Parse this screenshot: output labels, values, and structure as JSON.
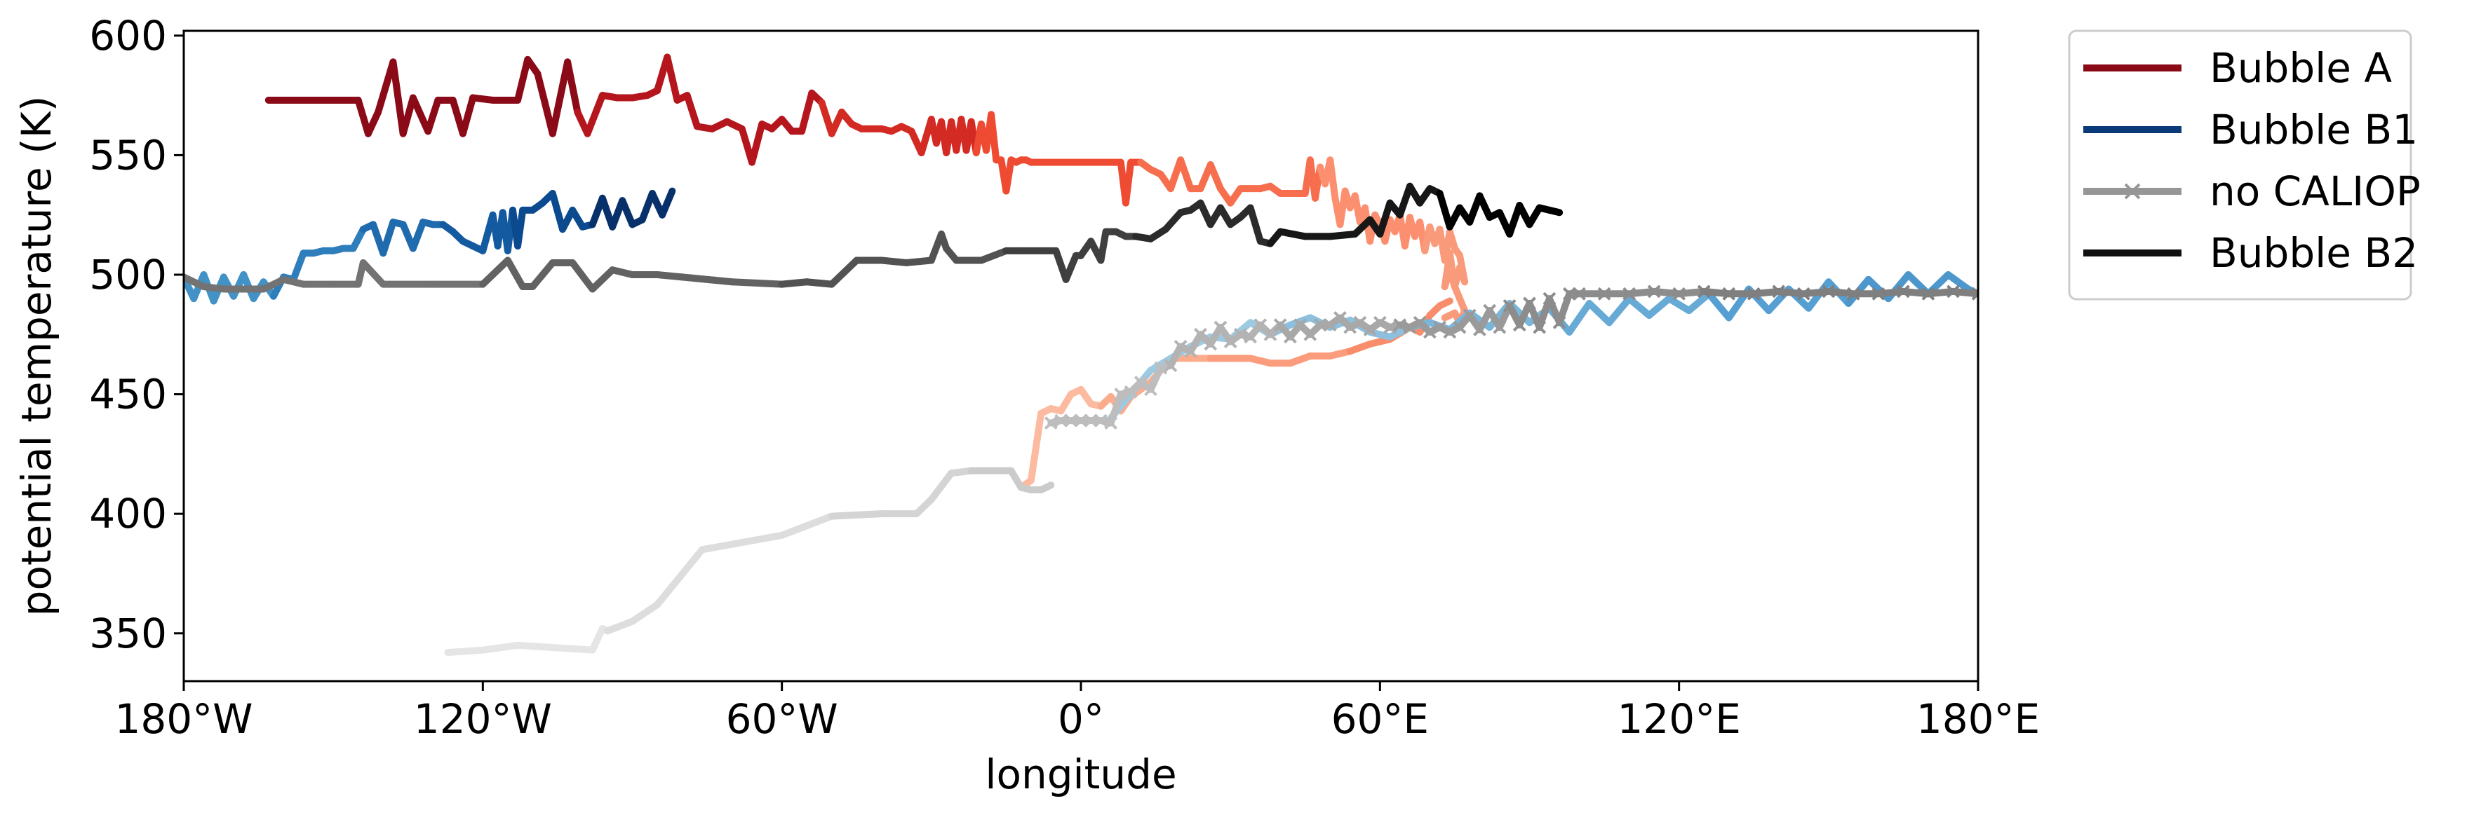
{
  "chart_data": {
    "type": "line",
    "xlabel": "longitude",
    "ylabel": "potential temperature (K)",
    "xlim": [
      -180,
      180
    ],
    "ylim": [
      330,
      602
    ],
    "grid": false,
    "legend_placement": "outside-top-right",
    "xticks": [
      {
        "value": -180,
        "label": "180°W"
      },
      {
        "value": -120,
        "label": "120°W"
      },
      {
        "value": -60,
        "label": "60°W"
      },
      {
        "value": 0,
        "label": "0°"
      },
      {
        "value": 60,
        "label": "60°E"
      },
      {
        "value": 120,
        "label": "120°E"
      },
      {
        "value": 180,
        "label": "180°E"
      }
    ],
    "yticks": [
      {
        "value": 350,
        "label": "350"
      },
      {
        "value": 400,
        "label": "400"
      },
      {
        "value": 450,
        "label": "450"
      },
      {
        "value": 500,
        "label": "500"
      },
      {
        "value": 550,
        "label": "550"
      },
      {
        "value": 600,
        "label": "600"
      }
    ],
    "legend": [
      {
        "label": "Bubble A",
        "color": "#8b0a17",
        "marker": "none"
      },
      {
        "label": "Bubble B1",
        "color": "#0b3a78",
        "marker": "none"
      },
      {
        "label": "no CALIOP",
        "color": "#969696",
        "marker": "x"
      },
      {
        "label": "Bubble B2",
        "color": "#111111",
        "marker": "none"
      }
    ],
    "series": [
      {
        "group": "Bubble A",
        "marker": "none",
        "colors": [
          "#8b0a17",
          "#b5161d",
          "#d32a24",
          "#ee4b32",
          "#f66e4e",
          "#fb8f6f",
          "#f99a7a"
        ],
        "x": [
          -163,
          -160,
          -150,
          -145,
          -143,
          -141,
          -138,
          -136,
          -134,
          -131,
          -129,
          -126,
          -124,
          -122,
          -118,
          -116,
          -113,
          -111,
          -109,
          -106,
          -103,
          -101,
          -99,
          -96,
          -93,
          -90,
          -87,
          -85,
          -83,
          -81,
          -79,
          -77,
          -74,
          -71,
          -68,
          -66,
          -64,
          -62,
          -60,
          -58,
          -56,
          -54,
          -52,
          -50,
          -48,
          -46,
          -44,
          -42,
          -40,
          -38,
          -36,
          -34,
          -32,
          -30,
          -29,
          -28,
          -27,
          -26,
          -25,
          -24,
          -23,
          -22,
          -21,
          -20,
          -19,
          -18,
          -17,
          -16,
          -15,
          -14,
          -13,
          -12,
          -11,
          -10,
          -8,
          -5,
          -2,
          0,
          2,
          5,
          8,
          9,
          10,
          12,
          14,
          16,
          18,
          20,
          22,
          24,
          26,
          28,
          30,
          32,
          34,
          36,
          38,
          40,
          42,
          44,
          45,
          46,
          47,
          48,
          49,
          50,
          51,
          52,
          53,
          54,
          55,
          56,
          57,
          58,
          59,
          60,
          61,
          62,
          63,
          64,
          65,
          66,
          67,
          68,
          69,
          70,
          71,
          72,
          73,
          74,
          75,
          76,
          77,
          76,
          75,
          74,
          73,
          74,
          75,
          76,
          77,
          76,
          75,
          74,
          73
        ],
        "y": [
          573,
          573,
          573,
          573,
          559,
          568,
          589,
          559,
          574,
          560,
          573,
          573,
          559,
          574,
          573,
          573,
          573,
          590,
          584,
          559,
          589,
          568,
          559,
          575,
          574,
          574,
          575,
          577,
          591,
          573,
          575,
          562,
          561,
          564,
          561,
          547,
          563,
          561,
          565,
          560,
          560,
          576,
          572,
          559,
          568,
          563,
          561,
          561,
          561,
          560,
          562,
          560,
          551,
          565,
          555,
          564,
          551,
          564,
          552,
          565,
          552,
          564,
          551,
          563,
          552,
          567,
          548,
          548,
          535,
          548,
          547,
          548,
          548,
          547,
          547,
          547,
          547,
          547,
          547,
          547,
          547,
          530,
          547,
          547,
          544,
          542,
          536,
          548,
          536,
          536,
          546,
          536,
          530,
          536,
          536,
          536,
          537,
          534,
          534,
          534,
          534,
          548,
          532,
          545,
          538,
          548,
          532,
          521,
          535,
          528,
          533,
          522,
          528,
          514,
          525,
          521,
          514,
          523,
          518,
          525,
          512,
          524,
          516,
          522,
          510,
          520,
          513,
          519,
          506,
          518,
          511,
          508,
          497,
          503,
          495,
          509,
          495,
          502,
          495,
          490,
          485,
          480,
          484,
          483,
          482
        ]
      },
      {
        "group": "Bubble A",
        "marker": "none",
        "colors": [
          "#fcbba1",
          "#fbac8d",
          "#fb9c7c",
          "#f98c6a"
        ],
        "x": [
          -12,
          -10,
          -8,
          -6,
          -4,
          -2,
          0,
          2,
          4,
          6,
          8,
          10,
          14,
          18,
          22,
          26,
          30,
          34,
          38,
          42,
          46,
          50,
          54,
          58,
          62,
          66,
          68,
          70,
          72,
          74
        ],
        "y": [
          411,
          414,
          442,
          444,
          443,
          450,
          452,
          446,
          445,
          449,
          443,
          449,
          455,
          465,
          465,
          465,
          465,
          465,
          463,
          463,
          466,
          466,
          468,
          471,
          473,
          478,
          476,
          483,
          487,
          489
        ]
      },
      {
        "group": "Bubble B1",
        "marker": "none",
        "colors": [
          "#4292c6",
          "#2f7ebc",
          "#1f6bae",
          "#145aa0",
          "#0b4a8f",
          "#08306b"
        ],
        "x": [
          -180,
          -178,
          -176,
          -174,
          -172,
          -170,
          -168,
          -166,
          -164,
          -162,
          -160,
          -158,
          -156,
          -154,
          -152,
          -150,
          -148,
          -146,
          -144,
          -142,
          -140,
          -138,
          -136,
          -134,
          -132,
          -130,
          -128,
          -126,
          -124,
          -122,
          -120,
          -118,
          -117,
          -116,
          -115,
          -114,
          -113,
          -112,
          -110,
          -108,
          -106,
          -104,
          -102,
          -100,
          -98,
          -96,
          -94,
          -92,
          -90,
          -88,
          -86,
          -84,
          -82
        ],
        "y": [
          499,
          490,
          500,
          489,
          499,
          491,
          500,
          490,
          497,
          491,
          499,
          498,
          509,
          509,
          510,
          510,
          511,
          511,
          519,
          521,
          509,
          522,
          521,
          511,
          522,
          521,
          521,
          518,
          514,
          512,
          510,
          525,
          512,
          526,
          510,
          527,
          512,
          527,
          527,
          530,
          534,
          519,
          527,
          520,
          521,
          532,
          520,
          531,
          521,
          523,
          534,
          525,
          535
        ]
      },
      {
        "group": "Bubble B1",
        "marker": "none",
        "colors": [
          "#9ecae1",
          "#8cc0de",
          "#7ab5da",
          "#68aad6",
          "#569fd2",
          "#4d97cc"
        ],
        "x": [
          6,
          10,
          14,
          18,
          22,
          26,
          30,
          34,
          38,
          42,
          46,
          50,
          54,
          58,
          62,
          66,
          70,
          74,
          78,
          82,
          86,
          90,
          94,
          98,
          102,
          106,
          110,
          114,
          118,
          122,
          126,
          130,
          134,
          138,
          142,
          146,
          150,
          154,
          158,
          162,
          166,
          170,
          174,
          178,
          180
        ],
        "y": [
          440,
          450,
          460,
          465,
          470,
          474,
          473,
          480,
          475,
          479,
          482,
          478,
          481,
          476,
          474,
          478,
          480,
          477,
          484,
          478,
          488,
          480,
          486,
          476,
          488,
          480,
          490,
          483,
          490,
          485,
          492,
          482,
          494,
          485,
          494,
          486,
          497,
          488,
          498,
          490,
          500,
          492,
          500,
          494,
          492
        ]
      },
      {
        "group": "Bubble B2",
        "marker": "none",
        "colors": [
          "#737373",
          "#626262",
          "#525252",
          "#3f3f3f",
          "#2b2b2b",
          "#171717",
          "#000000"
        ],
        "x": [
          -180,
          -176,
          -172,
          -168,
          -164,
          -160,
          -156,
          -150,
          -145,
          -144,
          -140,
          -130,
          -120,
          -115,
          -112,
          -110,
          -106,
          -102,
          -98,
          -94,
          -90,
          -85,
          -80,
          -70,
          -60,
          -55,
          -50,
          -45,
          -42,
          -40,
          -35,
          -30,
          -28,
          -27,
          -25,
          -20,
          -15,
          -12,
          -8,
          -5,
          -3,
          -1,
          0,
          2,
          4,
          5,
          7,
          9,
          11,
          14,
          17,
          20,
          22,
          24,
          26,
          28,
          30,
          32,
          34,
          36,
          38,
          40,
          45,
          50,
          55,
          58,
          60,
          62,
          64,
          66,
          68,
          70,
          72,
          74,
          76,
          78,
          80,
          82,
          84,
          86,
          88,
          90,
          92,
          94,
          96
        ],
        "y": [
          499,
          495,
          494,
          494,
          494,
          498,
          496,
          496,
          496,
          505,
          496,
          496,
          496,
          506,
          495,
          495,
          505,
          505,
          494,
          502,
          500,
          500,
          499,
          497,
          496,
          497,
          496,
          506,
          506,
          506,
          505,
          506,
          517,
          511,
          506,
          506,
          510,
          510,
          510,
          510,
          498,
          508,
          508,
          514,
          506,
          518,
          518,
          516,
          516,
          515,
          519,
          526,
          527,
          530,
          521,
          528,
          521,
          524,
          528,
          514,
          513,
          518,
          516,
          516,
          517,
          523,
          517,
          530,
          525,
          537,
          530,
          536,
          534,
          520,
          528,
          522,
          533,
          524,
          526,
          517,
          529,
          521,
          528,
          527,
          526
        ]
      },
      {
        "group": "no CALIOP",
        "marker": "x",
        "colors": [
          "#bdbdbd",
          "#b3b3b3",
          "#a8a8a8",
          "#9a9a9a",
          "#8c8c8c",
          "#7f7f7f"
        ],
        "x": [
          -6,
          -4,
          -2,
          0,
          2,
          4,
          6,
          8,
          10,
          12,
          14,
          16,
          18,
          20,
          22,
          24,
          26,
          28,
          30,
          32,
          34,
          36,
          38,
          40,
          42,
          44,
          46,
          48,
          50,
          52,
          54,
          56,
          58,
          60,
          62,
          64,
          66,
          68,
          70,
          72,
          74,
          76,
          78,
          80,
          82,
          84,
          86,
          88,
          90,
          92,
          94,
          96,
          98,
          100,
          105,
          110,
          115,
          120,
          125,
          130,
          135,
          140,
          145,
          150,
          155,
          160,
          165,
          170,
          175,
          180
        ],
        "y": [
          438,
          439,
          439,
          439,
          439,
          439,
          438,
          450,
          451,
          455,
          452,
          461,
          462,
          470,
          468,
          475,
          471,
          478,
          472,
          475,
          474,
          479,
          475,
          479,
          474,
          479,
          475,
          479,
          479,
          482,
          478,
          480,
          477,
          480,
          478,
          479,
          478,
          480,
          476,
          478,
          476,
          478,
          483,
          477,
          485,
          478,
          487,
          479,
          488,
          478,
          490,
          480,
          492,
          492,
          492,
          492,
          493,
          492,
          493,
          492,
          492,
          493,
          492,
          493,
          492,
          492,
          493,
          492,
          493,
          492
        ]
      },
      {
        "group": "no CALIOP",
        "marker": "none",
        "colors": [
          "#e5e5e5",
          "#dddddd",
          "#d4d4d4",
          "#cbcbcb"
        ],
        "x": [
          -127,
          -120,
          -113,
          -98,
          -96,
          -95,
          -90,
          -85,
          -76,
          -60,
          -50,
          -40,
          -33,
          -30,
          -26,
          -22,
          -14,
          -12,
          -10,
          -8,
          -6
        ],
        "y": [
          342,
          343,
          345,
          343,
          352,
          351,
          355,
          362,
          385,
          391,
          399,
          400,
          400,
          406,
          417,
          418,
          418,
          411,
          410,
          410,
          412
        ]
      }
    ]
  }
}
